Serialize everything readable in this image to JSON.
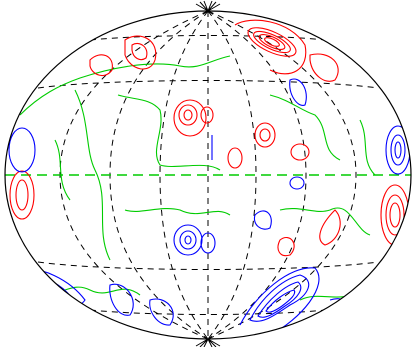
{
  "map": {
    "projection": "hammer-aitoff",
    "grid": true,
    "colors": {
      "outline": "#000000",
      "graticule": "#000000",
      "positive": "#ff0000",
      "negative": "#0000ff",
      "zero": "#00cc00",
      "equator_overlay": "#00cc00"
    }
  }
}
